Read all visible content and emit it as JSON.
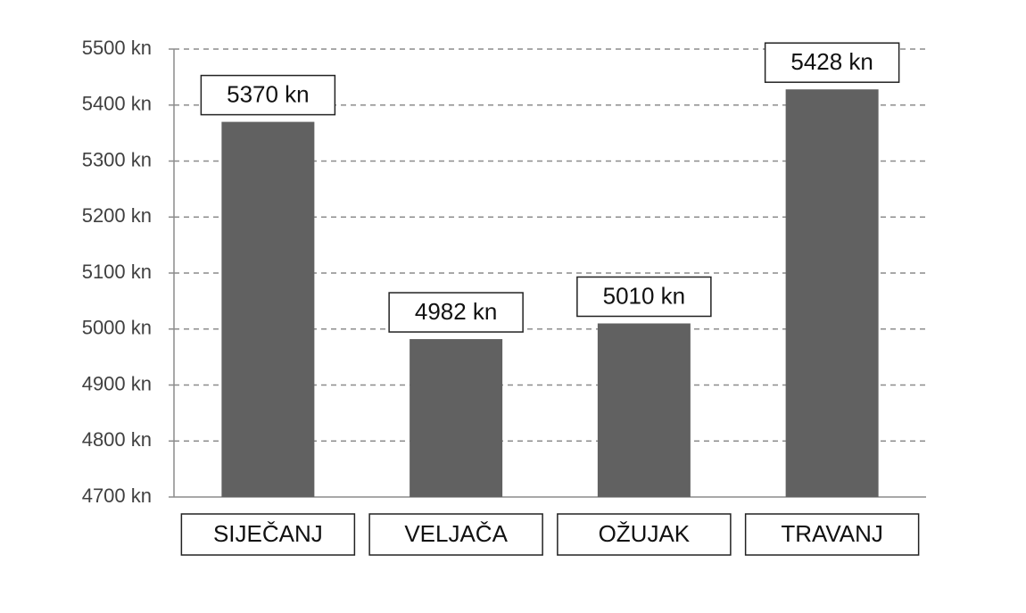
{
  "chart_data": {
    "type": "bar",
    "categories": [
      "SIJEČANJ",
      "VELJAČA",
      "OŽUJAK",
      "TRAVANJ"
    ],
    "values": [
      5370,
      4982,
      5010,
      5428
    ],
    "value_labels": [
      "5370 kn",
      "4982 kn",
      "5010 kn",
      "5428 kn"
    ],
    "color": "#616161",
    "ylim": [
      4700,
      5500
    ],
    "yticks": [
      {
        "value": 4700,
        "label": "4700 kn"
      },
      {
        "value": 4800,
        "label": "4800 kn"
      },
      {
        "value": 4900,
        "label": "4900 kn"
      },
      {
        "value": 5000,
        "label": "5000 kn"
      },
      {
        "value": 5100,
        "label": "5100 kn"
      },
      {
        "value": 5200,
        "label": "5200 kn"
      },
      {
        "value": 5300,
        "label": "5300 kn"
      },
      {
        "value": 5400,
        "label": "5400 kn"
      },
      {
        "value": 5500,
        "label": "5500 kn"
      }
    ],
    "grid": true
  }
}
